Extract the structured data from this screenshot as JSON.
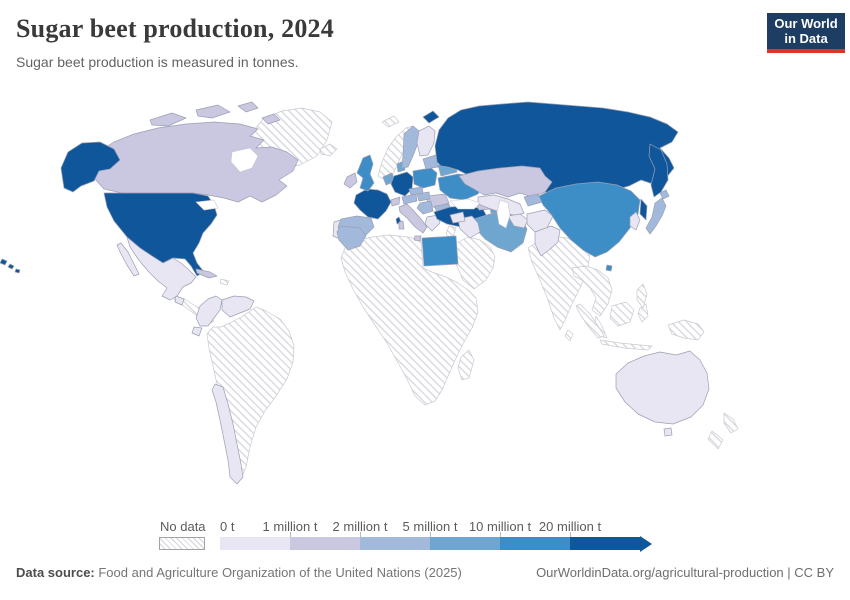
{
  "header": {
    "title": "Sugar beet production, 2024",
    "subtitle": "Sugar beet production is measured in tonnes.",
    "logo": {
      "line1": "Our World",
      "line2": "in Data",
      "bg_color": "#1d3d63",
      "accent_color": "#dc3427"
    }
  },
  "legend": {
    "no_data_label": "No data",
    "tick_labels": [
      "0 t",
      "1 million t",
      "2 million t",
      "5 million t",
      "10 million t",
      "20 million t"
    ]
  },
  "footer": {
    "source_label": "Data source:",
    "source_text": " Food and Agriculture Organization of the United Nations (2025)",
    "right_text": "OurWorldinData.org/agricultural-production | CC BY"
  },
  "chart_data": {
    "type": "heatmap",
    "subtype": "world-choropleth",
    "title": "Sugar beet production, 2024",
    "unit": "tonnes",
    "year": 2024,
    "legend_position": "bottom",
    "bins": [
      {
        "range": "0 t – 1 million t",
        "color": "#e8e6f2"
      },
      {
        "range": "1 – 2 million t",
        "color": "#cac7e1"
      },
      {
        "range": "2 – 5 million t",
        "color": "#a3b9db"
      },
      {
        "range": "5 – 10 million t",
        "color": "#6fa6d0"
      },
      {
        "range": "10 – 20 million t",
        "color": "#3d8ec6"
      },
      {
        "range": "more than 20 million t",
        "color": "#10569b"
      }
    ],
    "no_data": {
      "label": "No data",
      "pattern": "diagonal-hatch",
      "hatch_color": "#d2d2da"
    },
    "country_bins": {
      "United States": 6,
      "Russia": 6,
      "France": 6,
      "Germany": 6,
      "Turkey": 6,
      "United Kingdom": 5,
      "Poland": 5,
      "Ukraine": 5,
      "Egypt": 5,
      "China": 5,
      "Netherlands": 4,
      "Denmark": 4,
      "Belarus": 4,
      "Iran": 4,
      "Azerbaijan": 4,
      "Spain": 3,
      "Sweden": 3,
      "Czechia": 3,
      "Austria": 3,
      "Hungary": 3,
      "Serbia": 3,
      "Bulgaria": 3,
      "Morocco": 3,
      "Japan": 3,
      "Baltic states": 3,
      "Kyrgyzstan": 3,
      "Canada": 2,
      "Ireland": 2,
      "Italy": 2,
      "Switzerland": 2,
      "Romania": 2,
      "Kazakhstan": 2,
      "Georgia": 2,
      "Cuba": 2,
      "Mexico": 1,
      "Guatemala": 1,
      "Colombia": 1,
      "Venezuela": 1,
      "Ecuador": 1,
      "Chile": 1,
      "Portugal": 1,
      "Finland": 1,
      "Greece": 1,
      "Syria": 1,
      "Iraq": 1,
      "Uzbekistan": 1,
      "Turkmenistan": 1,
      "Afghanistan": 1,
      "Pakistan": 1,
      "South Korea": 1,
      "Australia": 1,
      "Greenland": 0,
      "Iceland": 0,
      "Svalbard": 0,
      "Norway": 0,
      "Africa (most countries)": 0,
      "Madagascar": 0,
      "Saudi Arabia": 0,
      "Jordan": 0,
      "South America (most countries)": 0,
      "Central America": 0,
      "Hispaniola": 0,
      "India": 0,
      "Sri Lanka": 0,
      "Mongolia": 0,
      "Mainland Southeast Asia": 0,
      "Indonesia": 0,
      "Philippines": 0,
      "Papua New Guinea": 0,
      "New Zealand": 0
    }
  }
}
